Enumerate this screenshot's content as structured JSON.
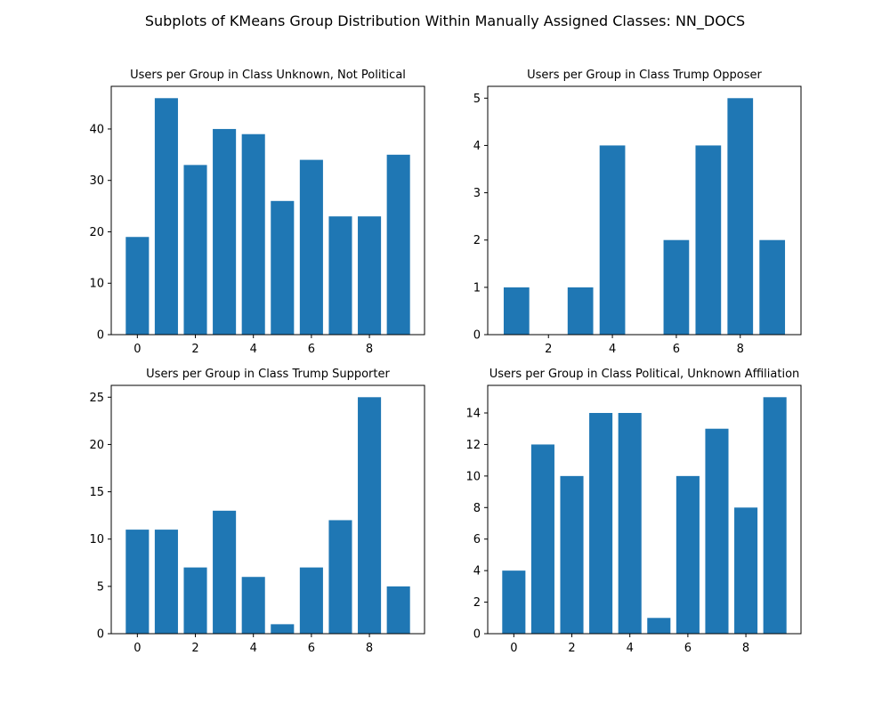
{
  "figure": {
    "suptitle": "Subplots of KMeans Group Distribution Within Manually Assigned Classes: NN_DOCS",
    "bar_color": "#1f77b4"
  },
  "chart_data": [
    {
      "type": "bar",
      "title": "Users per Group in Class Unknown, Not Political",
      "categories": [
        0,
        1,
        2,
        3,
        4,
        5,
        6,
        7,
        8,
        9
      ],
      "values": [
        19,
        46,
        33,
        40,
        39,
        26,
        34,
        23,
        23,
        35
      ],
      "xlim": [
        -0.9,
        9.9
      ],
      "ylim": [
        0,
        48.3
      ],
      "xticks": [
        0,
        2,
        4,
        6,
        8
      ],
      "yticks": [
        0,
        10,
        20,
        30,
        40
      ],
      "xlabel": "",
      "ylabel": "",
      "grid": false
    },
    {
      "type": "bar",
      "title": "Users per Group in Class Trump Opposer",
      "categories": [
        1,
        3,
        4,
        6,
        7,
        8,
        9
      ],
      "values": [
        1,
        1,
        4,
        2,
        4,
        5,
        2
      ],
      "xlim": [
        0.1,
        9.9
      ],
      "ylim": [
        0,
        5.25
      ],
      "xticks": [
        2,
        4,
        6,
        8
      ],
      "yticks": [
        0,
        1,
        2,
        3,
        4,
        5
      ],
      "xlabel": "",
      "ylabel": "",
      "grid": false
    },
    {
      "type": "bar",
      "title": "Users per Group in Class Trump Supporter",
      "categories": [
        0,
        1,
        2,
        3,
        4,
        5,
        6,
        7,
        8,
        9
      ],
      "values": [
        11,
        11,
        7,
        13,
        6,
        1,
        7,
        12,
        25,
        5
      ],
      "xlim": [
        -0.9,
        9.9
      ],
      "ylim": [
        0,
        26.25
      ],
      "xticks": [
        0,
        2,
        4,
        6,
        8
      ],
      "yticks": [
        0,
        5,
        10,
        15,
        20,
        25
      ],
      "xlabel": "",
      "ylabel": "",
      "grid": false
    },
    {
      "type": "bar",
      "title": "Users per Group in Class Political, Unknown Affiliation",
      "categories": [
        0,
        1,
        2,
        3,
        4,
        5,
        6,
        7,
        8,
        9
      ],
      "values": [
        4,
        12,
        10,
        14,
        14,
        1,
        10,
        13,
        8,
        15
      ],
      "xlim": [
        -0.9,
        9.9
      ],
      "ylim": [
        0,
        15.75
      ],
      "xticks": [
        0,
        2,
        4,
        6,
        8
      ],
      "yticks": [
        0,
        2,
        4,
        6,
        8,
        10,
        12,
        14
      ],
      "xlabel": "",
      "ylabel": "",
      "grid": false
    }
  ]
}
